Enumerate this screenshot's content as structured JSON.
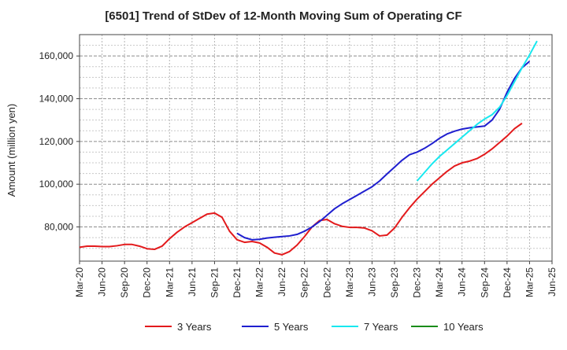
{
  "chart_data": {
    "type": "line",
    "title": "[6501]  Trend of StDev of 12-Month Moving Sum of Operating CF",
    "xlabel": "",
    "ylabel": "Amount (million yen)",
    "ylim": [
      64000,
      170000
    ],
    "yticks": [
      80000,
      100000,
      120000,
      140000,
      160000
    ],
    "ytick_labels": [
      "80,000",
      "100,000",
      "120,000",
      "140,000",
      "160,000"
    ],
    "x_tick_labels": [
      "Mar-20",
      "Jun-20",
      "Sep-20",
      "Dec-20",
      "Mar-21",
      "Jun-21",
      "Sep-21",
      "Dec-21",
      "Mar-22",
      "Jun-22",
      "Sep-22",
      "Dec-22",
      "Mar-23",
      "Jun-23",
      "Sep-23",
      "Dec-23",
      "Mar-24",
      "Jun-24",
      "Sep-24",
      "Dec-24",
      "Mar-25",
      "Jun-25"
    ],
    "x_start": "Mar-20",
    "grid": true,
    "legend_position": "bottom",
    "series": [
      {
        "name": "3 Years",
        "color": "#e31a1c",
        "start_index": 0,
        "values": [
          70500,
          71000,
          71000,
          70800,
          70800,
          71200,
          71800,
          71800,
          71000,
          69800,
          69500,
          71000,
          74500,
          77500,
          80000,
          82000,
          84000,
          86000,
          86500,
          84500,
          78000,
          74000,
          72800,
          73200,
          72500,
          70500,
          67800,
          67000,
          68500,
          71500,
          75500,
          80000,
          83000,
          83500,
          81500,
          80300,
          79800,
          79800,
          79500,
          78200,
          75800,
          76200,
          79500,
          84500,
          89000,
          93000,
          96500,
          100000,
          103000,
          106000,
          108500,
          110000,
          110800,
          112000,
          114000,
          116500,
          119500,
          122500,
          126000,
          128500
        ]
      },
      {
        "name": "5 Years",
        "color": "#1f1fcf",
        "start_index": 21,
        "values": [
          77000,
          75000,
          74000,
          74200,
          74800,
          75200,
          75500,
          75800,
          76500,
          78000,
          80000,
          82500,
          85500,
          88500,
          90800,
          92800,
          94800,
          96800,
          98800,
          101500,
          104800,
          108000,
          111200,
          113800,
          115000,
          116800,
          119000,
          121500,
          123500,
          124800,
          125800,
          126400,
          126800,
          127200,
          130000,
          135000,
          143000,
          149500,
          154500,
          157500
        ]
      },
      {
        "name": "7 Years",
        "color": "#18e8ef",
        "start_index": 45,
        "values": [
          101500,
          105500,
          109500,
          113000,
          116000,
          119000,
          122000,
          125000,
          128000,
          130500,
          132500,
          136000,
          141500,
          148000,
          154500,
          160500,
          167000
        ]
      },
      {
        "name": "10 Years",
        "color": "#1a8c1a",
        "start_index": 0,
        "values": []
      }
    ]
  }
}
